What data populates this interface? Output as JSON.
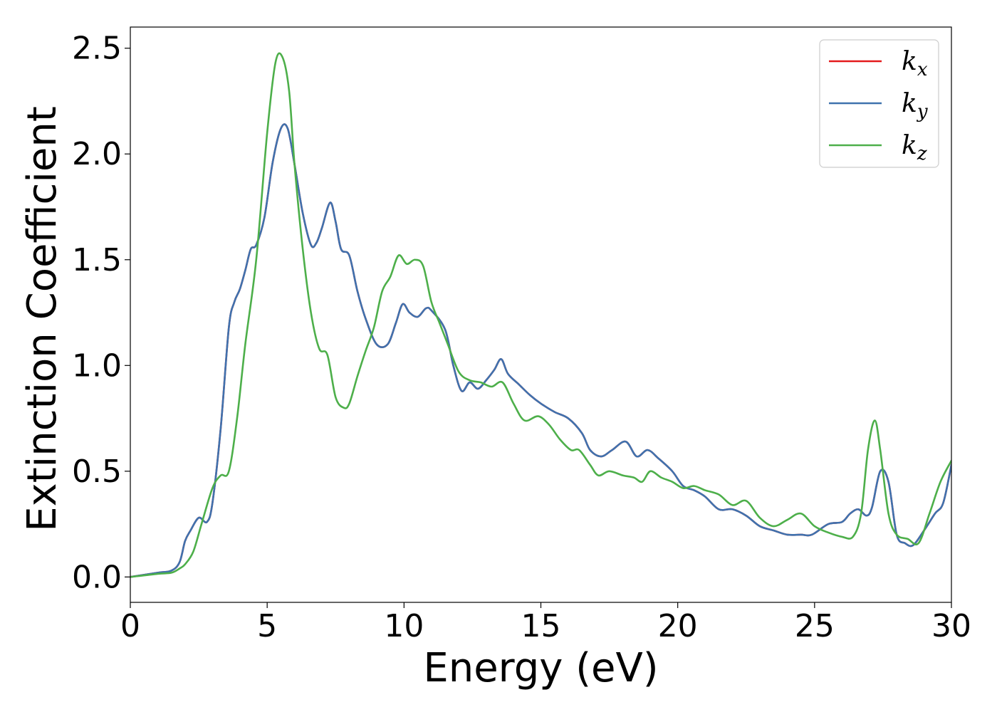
{
  "chart_data": {
    "type": "line",
    "xlabel": "Energy (eV)",
    "ylabel": "Extinction Coefficient",
    "xlim": [
      0,
      30
    ],
    "ylim": [
      -0.12,
      2.6
    ],
    "xticks": [
      0,
      5,
      10,
      15,
      20,
      25,
      30
    ],
    "xtick_labels": [
      "0",
      "5",
      "10",
      "15",
      "20",
      "25",
      "30"
    ],
    "yticks": [
      0.0,
      0.5,
      1.0,
      1.5,
      2.0,
      2.5
    ],
    "ytick_labels": [
      "0.0",
      "0.5",
      "1.0",
      "1.5",
      "2.0",
      "2.5"
    ],
    "grid": false,
    "legend_position": "top-right",
    "series": [
      {
        "name": "k",
        "subscript": "x",
        "color": "#e41a1c",
        "x": [
          0,
          1,
          1.5,
          1.8,
          2.0,
          2.2,
          2.5,
          2.8,
          3.0,
          3.3,
          3.6,
          3.8,
          4.0,
          4.2,
          4.4,
          4.6,
          4.9,
          5.2,
          5.5,
          5.75,
          6.0,
          6.3,
          6.6,
          6.8,
          7.0,
          7.3,
          7.5,
          7.7,
          8.0,
          8.3,
          8.6,
          9.0,
          9.4,
          9.7,
          9.95,
          10.2,
          10.5,
          10.8,
          11.0,
          11.5,
          11.8,
          12.1,
          12.4,
          12.7,
          13.0,
          13.3,
          13.55,
          13.8,
          14.2,
          14.6,
          15.0,
          15.5,
          16.0,
          16.5,
          16.8,
          17.2,
          17.6,
          18.1,
          18.5,
          18.9,
          19.3,
          19.8,
          20.2,
          20.6,
          21.0,
          21.5,
          22.0,
          22.5,
          23.0,
          23.5,
          24.0,
          24.5,
          24.9,
          25.5,
          26.0,
          26.3,
          26.6,
          26.9,
          27.1,
          27.4,
          27.7,
          28.0,
          28.3,
          28.6,
          29.0,
          29.4,
          29.7,
          30.0
        ],
        "y": [
          0.0,
          0.02,
          0.03,
          0.07,
          0.17,
          0.22,
          0.28,
          0.26,
          0.35,
          0.7,
          1.18,
          1.3,
          1.36,
          1.45,
          1.55,
          1.57,
          1.7,
          1.96,
          2.12,
          2.12,
          1.95,
          1.72,
          1.57,
          1.58,
          1.65,
          1.77,
          1.68,
          1.55,
          1.52,
          1.35,
          1.22,
          1.1,
          1.1,
          1.2,
          1.29,
          1.25,
          1.23,
          1.27,
          1.26,
          1.17,
          1.0,
          0.88,
          0.92,
          0.89,
          0.93,
          0.98,
          1.03,
          0.96,
          0.91,
          0.86,
          0.82,
          0.78,
          0.75,
          0.68,
          0.6,
          0.57,
          0.6,
          0.64,
          0.57,
          0.6,
          0.56,
          0.5,
          0.43,
          0.41,
          0.38,
          0.32,
          0.32,
          0.29,
          0.24,
          0.22,
          0.2,
          0.2,
          0.2,
          0.25,
          0.26,
          0.3,
          0.32,
          0.29,
          0.33,
          0.5,
          0.45,
          0.2,
          0.16,
          0.15,
          0.22,
          0.3,
          0.35,
          0.53
        ]
      },
      {
        "name": "k",
        "subscript": "y",
        "color": "#3f72ae",
        "x": [
          0,
          1,
          1.5,
          1.8,
          2.0,
          2.2,
          2.5,
          2.8,
          3.0,
          3.3,
          3.6,
          3.8,
          4.0,
          4.2,
          4.4,
          4.6,
          4.9,
          5.2,
          5.5,
          5.75,
          6.0,
          6.3,
          6.6,
          6.8,
          7.0,
          7.3,
          7.5,
          7.7,
          8.0,
          8.3,
          8.6,
          9.0,
          9.4,
          9.7,
          9.95,
          10.2,
          10.5,
          10.8,
          11.0,
          11.5,
          11.8,
          12.1,
          12.4,
          12.7,
          13.0,
          13.3,
          13.55,
          13.8,
          14.2,
          14.6,
          15.0,
          15.5,
          16.0,
          16.5,
          16.8,
          17.2,
          17.6,
          18.1,
          18.5,
          18.9,
          19.3,
          19.8,
          20.2,
          20.6,
          21.0,
          21.5,
          22.0,
          22.5,
          23.0,
          23.5,
          24.0,
          24.5,
          24.9,
          25.5,
          26.0,
          26.3,
          26.6,
          26.9,
          27.1,
          27.4,
          27.7,
          28.0,
          28.3,
          28.6,
          29.0,
          29.4,
          29.7,
          30.0
        ],
        "y": [
          0.0,
          0.02,
          0.03,
          0.07,
          0.17,
          0.22,
          0.28,
          0.26,
          0.35,
          0.7,
          1.18,
          1.3,
          1.36,
          1.45,
          1.55,
          1.57,
          1.7,
          1.96,
          2.12,
          2.12,
          1.95,
          1.72,
          1.57,
          1.58,
          1.65,
          1.77,
          1.68,
          1.55,
          1.52,
          1.35,
          1.22,
          1.1,
          1.1,
          1.2,
          1.29,
          1.25,
          1.23,
          1.27,
          1.26,
          1.17,
          1.0,
          0.88,
          0.92,
          0.89,
          0.93,
          0.98,
          1.03,
          0.96,
          0.91,
          0.86,
          0.82,
          0.78,
          0.75,
          0.68,
          0.6,
          0.57,
          0.6,
          0.64,
          0.57,
          0.6,
          0.56,
          0.5,
          0.43,
          0.41,
          0.38,
          0.32,
          0.32,
          0.29,
          0.24,
          0.22,
          0.2,
          0.2,
          0.2,
          0.25,
          0.26,
          0.3,
          0.32,
          0.29,
          0.33,
          0.5,
          0.45,
          0.2,
          0.16,
          0.15,
          0.22,
          0.3,
          0.35,
          0.53
        ]
      },
      {
        "name": "k",
        "subscript": "z",
        "color": "#4daf4a",
        "x": [
          0,
          1,
          1.5,
          1.8,
          2.0,
          2.3,
          2.6,
          3.0,
          3.3,
          3.6,
          3.9,
          4.2,
          4.6,
          5.0,
          5.3,
          5.55,
          5.8,
          6.0,
          6.3,
          6.6,
          6.9,
          7.2,
          7.5,
          7.8,
          8.0,
          8.3,
          8.6,
          8.9,
          9.2,
          9.5,
          9.8,
          10.1,
          10.4,
          10.7,
          11.0,
          11.3,
          11.6,
          12.0,
          12.4,
          12.8,
          13.2,
          13.6,
          14.0,
          14.4,
          14.9,
          15.3,
          15.7,
          16.1,
          16.4,
          16.8,
          17.1,
          17.5,
          18.0,
          18.4,
          18.7,
          19.0,
          19.4,
          19.8,
          20.2,
          20.6,
          21.0,
          21.5,
          22.0,
          22.5,
          23.0,
          23.5,
          24.0,
          24.5,
          25.0,
          25.5,
          26.0,
          26.4,
          26.7,
          26.95,
          27.2,
          27.4,
          27.7,
          28.0,
          28.4,
          28.8,
          29.2,
          29.6,
          30.0
        ],
        "y": [
          0.0,
          0.015,
          0.02,
          0.04,
          0.06,
          0.12,
          0.25,
          0.42,
          0.48,
          0.5,
          0.75,
          1.1,
          1.5,
          2.1,
          2.43,
          2.46,
          2.3,
          1.95,
          1.55,
          1.25,
          1.08,
          1.05,
          0.85,
          0.8,
          0.82,
          0.95,
          1.07,
          1.18,
          1.35,
          1.42,
          1.52,
          1.48,
          1.5,
          1.47,
          1.3,
          1.2,
          1.1,
          0.97,
          0.93,
          0.92,
          0.9,
          0.92,
          0.82,
          0.74,
          0.76,
          0.72,
          0.65,
          0.6,
          0.6,
          0.53,
          0.48,
          0.5,
          0.48,
          0.47,
          0.45,
          0.5,
          0.47,
          0.45,
          0.42,
          0.43,
          0.41,
          0.39,
          0.34,
          0.36,
          0.28,
          0.24,
          0.27,
          0.3,
          0.24,
          0.21,
          0.19,
          0.19,
          0.3,
          0.6,
          0.74,
          0.6,
          0.3,
          0.2,
          0.18,
          0.16,
          0.3,
          0.45,
          0.55
        ]
      }
    ]
  }
}
